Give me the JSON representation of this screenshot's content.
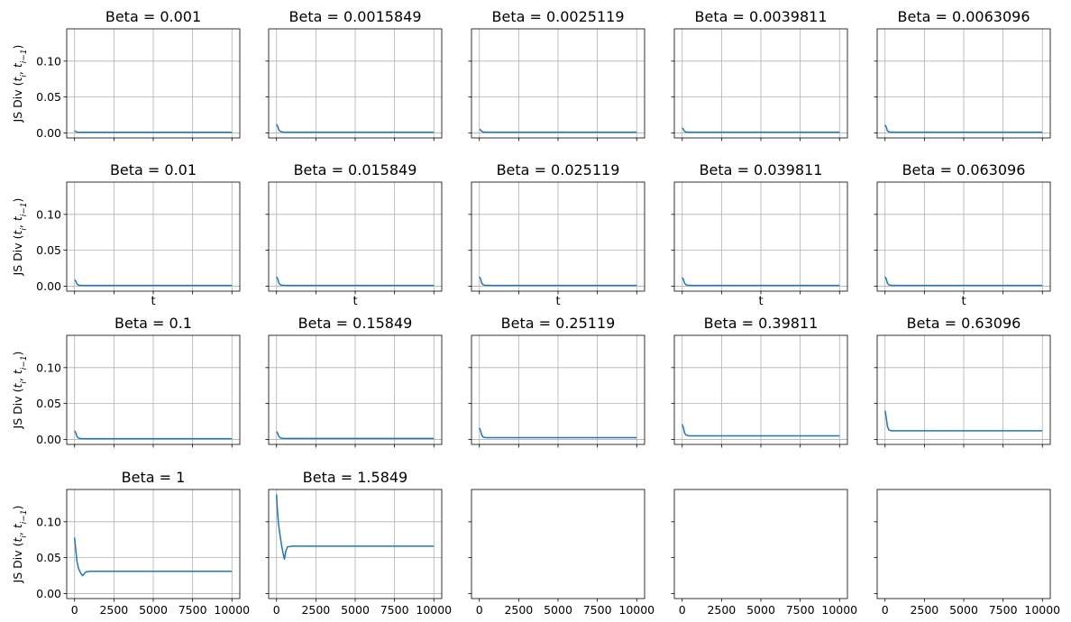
{
  "chart_data": {
    "type": "line",
    "layout": "4x5 grid of subplots, shared x and y axes",
    "grid": true,
    "colors": {
      "line": "#1f77b4",
      "grid": "#b0b0b0",
      "axes": "#000000"
    },
    "xlim": [
      -500,
      10500
    ],
    "ylim": [
      -0.007,
      0.145
    ],
    "x_ticks": [
      0,
      2500,
      5000,
      7500,
      10000
    ],
    "x_tick_labels": [
      "0",
      "2500",
      "5000",
      "7500",
      "10000"
    ],
    "y_ticks": [
      0.0,
      0.05,
      0.1
    ],
    "y_tick_labels": [
      "0.00",
      "0.05",
      "0.10"
    ],
    "ylabel": "JS Div (t_i, t_{i-1})",
    "ylabel_parts": {
      "prefix": "JS Div (",
      "t": "t",
      "sub_i": "i",
      "comma": ", ",
      "sub_prev": "i−1",
      "suffix": ")"
    },
    "xlabel": "t",
    "subplots": [
      {
        "title": "Beta = 0.001",
        "series": {
          "x": [
            0,
            150,
            300,
            600,
            1000,
            2000,
            3000,
            4000,
            5000,
            6000,
            7000,
            8000,
            9000,
            10000
          ],
          "y": [
            0.003,
            0.001,
            0.0008,
            0.0008,
            0.0008,
            0.0008,
            0.0008,
            0.0008,
            0.0008,
            0.0008,
            0.0008,
            0.0008,
            0.0008,
            0.0008
          ]
        }
      },
      {
        "title": "Beta = 0.0015849",
        "series": {
          "x": [
            0,
            80,
            150,
            250,
            400,
            700,
            1000,
            2000,
            3000,
            4000,
            5000,
            6000,
            7000,
            8000,
            9000,
            10000
          ],
          "y": [
            0.012,
            0.009,
            0.004,
            0.002,
            0.0012,
            0.001,
            0.001,
            0.001,
            0.001,
            0.001,
            0.001,
            0.001,
            0.001,
            0.001,
            0.001,
            0.001
          ]
        }
      },
      {
        "title": "Beta = 0.0025119",
        "series": {
          "x": [
            0,
            80,
            150,
            250,
            400,
            700,
            1000,
            2000,
            3000,
            4000,
            5000,
            6000,
            7000,
            8000,
            9000,
            10000
          ],
          "y": [
            0.005,
            0.004,
            0.002,
            0.0013,
            0.001,
            0.001,
            0.001,
            0.001,
            0.001,
            0.001,
            0.001,
            0.001,
            0.001,
            0.001,
            0.001,
            0.001
          ]
        }
      },
      {
        "title": "Beta = 0.0039811",
        "series": {
          "x": [
            0,
            80,
            150,
            250,
            400,
            700,
            1000,
            2000,
            3000,
            4000,
            5000,
            6000,
            7000,
            8000,
            9000,
            10000
          ],
          "y": [
            0.007,
            0.005,
            0.002,
            0.0013,
            0.001,
            0.001,
            0.001,
            0.001,
            0.001,
            0.001,
            0.001,
            0.001,
            0.001,
            0.001,
            0.001,
            0.001
          ]
        }
      },
      {
        "title": "Beta = 0.0063096",
        "series": {
          "x": [
            0,
            80,
            150,
            250,
            400,
            700,
            1000,
            2000,
            3000,
            4000,
            5000,
            6000,
            7000,
            8000,
            9000,
            10000
          ],
          "y": [
            0.011,
            0.008,
            0.003,
            0.0015,
            0.001,
            0.001,
            0.001,
            0.001,
            0.001,
            0.001,
            0.001,
            0.001,
            0.001,
            0.001,
            0.001,
            0.001
          ]
        }
      },
      {
        "title": "Beta = 0.01",
        "series": {
          "x": [
            0,
            80,
            150,
            250,
            400,
            700,
            1000,
            2000,
            3000,
            4000,
            5000,
            6000,
            7000,
            8000,
            9000,
            10000
          ],
          "y": [
            0.009,
            0.007,
            0.003,
            0.0015,
            0.001,
            0.001,
            0.001,
            0.001,
            0.001,
            0.001,
            0.001,
            0.001,
            0.001,
            0.001,
            0.001,
            0.001
          ]
        }
      },
      {
        "title": "Beta = 0.015849",
        "series": {
          "x": [
            0,
            80,
            150,
            250,
            400,
            700,
            1000,
            2000,
            3000,
            4000,
            5000,
            6000,
            7000,
            8000,
            9000,
            10000
          ],
          "y": [
            0.013,
            0.01,
            0.004,
            0.0018,
            0.0011,
            0.001,
            0.001,
            0.001,
            0.001,
            0.001,
            0.001,
            0.001,
            0.001,
            0.001,
            0.001,
            0.001
          ]
        }
      },
      {
        "title": "Beta = 0.025119",
        "series": {
          "x": [
            0,
            80,
            150,
            250,
            400,
            700,
            1000,
            2000,
            3000,
            4000,
            5000,
            6000,
            7000,
            8000,
            9000,
            10000
          ],
          "y": [
            0.013,
            0.01,
            0.004,
            0.0018,
            0.0011,
            0.001,
            0.001,
            0.001,
            0.001,
            0.001,
            0.001,
            0.001,
            0.001,
            0.001,
            0.001,
            0.001
          ]
        }
      },
      {
        "title": "Beta = 0.039811",
        "series": {
          "x": [
            0,
            80,
            150,
            250,
            400,
            700,
            1000,
            2000,
            3000,
            4000,
            5000,
            6000,
            7000,
            8000,
            9000,
            10000
          ],
          "y": [
            0.012,
            0.009,
            0.004,
            0.0018,
            0.0011,
            0.001,
            0.001,
            0.001,
            0.001,
            0.001,
            0.001,
            0.001,
            0.001,
            0.001,
            0.001,
            0.001
          ]
        }
      },
      {
        "title": "Beta = 0.063096",
        "series": {
          "x": [
            0,
            80,
            150,
            250,
            400,
            700,
            1000,
            2000,
            3000,
            4000,
            5000,
            6000,
            7000,
            8000,
            9000,
            10000
          ],
          "y": [
            0.013,
            0.01,
            0.004,
            0.0018,
            0.0011,
            0.001,
            0.001,
            0.001,
            0.001,
            0.001,
            0.001,
            0.001,
            0.001,
            0.001,
            0.001,
            0.001
          ]
        }
      },
      {
        "title": "Beta = 0.1",
        "series": {
          "x": [
            0,
            80,
            150,
            250,
            400,
            700,
            1000,
            2000,
            3000,
            4000,
            5000,
            6000,
            7000,
            8000,
            9000,
            10000
          ],
          "y": [
            0.012,
            0.009,
            0.004,
            0.0018,
            0.0012,
            0.001,
            0.001,
            0.001,
            0.001,
            0.001,
            0.001,
            0.001,
            0.001,
            0.001,
            0.001,
            0.001
          ]
        }
      },
      {
        "title": "Beta = 0.15849",
        "series": {
          "x": [
            0,
            80,
            150,
            250,
            400,
            700,
            1000,
            2000,
            3000,
            4000,
            5000,
            6000,
            7000,
            8000,
            9000,
            10000
          ],
          "y": [
            0.011,
            0.008,
            0.004,
            0.002,
            0.0015,
            0.0013,
            0.0013,
            0.0013,
            0.0013,
            0.0013,
            0.0013,
            0.0013,
            0.0013,
            0.0013,
            0.0013,
            0.0013
          ]
        }
      },
      {
        "title": "Beta = 0.25119",
        "series": {
          "x": [
            0,
            80,
            150,
            250,
            400,
            700,
            1000,
            2000,
            3000,
            4000,
            5000,
            6000,
            7000,
            8000,
            9000,
            10000
          ],
          "y": [
            0.016,
            0.012,
            0.006,
            0.003,
            0.0025,
            0.0025,
            0.0025,
            0.0025,
            0.0025,
            0.0025,
            0.0025,
            0.0025,
            0.0025,
            0.0025,
            0.0025,
            0.0025
          ]
        }
      },
      {
        "title": "Beta = 0.39811",
        "series": {
          "x": [
            0,
            80,
            150,
            250,
            400,
            700,
            1000,
            2000,
            3000,
            4000,
            5000,
            6000,
            7000,
            8000,
            9000,
            10000
          ],
          "y": [
            0.021,
            0.016,
            0.009,
            0.006,
            0.005,
            0.005,
            0.005,
            0.005,
            0.005,
            0.005,
            0.005,
            0.005,
            0.005,
            0.005,
            0.005,
            0.005
          ]
        }
      },
      {
        "title": "Beta = 0.63096",
        "series": {
          "x": [
            0,
            80,
            150,
            250,
            400,
            700,
            1000,
            2000,
            3000,
            4000,
            5000,
            6000,
            7000,
            8000,
            9000,
            10000
          ],
          "y": [
            0.04,
            0.03,
            0.018,
            0.013,
            0.012,
            0.012,
            0.012,
            0.012,
            0.012,
            0.012,
            0.012,
            0.012,
            0.012,
            0.012,
            0.012,
            0.012
          ]
        }
      },
      {
        "title": "Beta = 1",
        "series": {
          "x": [
            0,
            80,
            150,
            250,
            400,
            500,
            600,
            700,
            1000,
            2000,
            3000,
            4000,
            5000,
            6000,
            7000,
            8000,
            9000,
            10000
          ],
          "y": [
            0.078,
            0.06,
            0.045,
            0.035,
            0.028,
            0.025,
            0.027,
            0.03,
            0.031,
            0.031,
            0.031,
            0.031,
            0.031,
            0.031,
            0.031,
            0.031,
            0.031,
            0.031
          ]
        }
      },
      {
        "title": "Beta = 1.5849",
        "series": {
          "x": [
            0,
            60,
            120,
            200,
            300,
            400,
            500,
            600,
            700,
            1000,
            2000,
            3000,
            4000,
            5000,
            6000,
            7000,
            8000,
            9000,
            10000
          ],
          "y": [
            0.138,
            0.115,
            0.098,
            0.085,
            0.07,
            0.058,
            0.048,
            0.06,
            0.065,
            0.066,
            0.066,
            0.066,
            0.066,
            0.066,
            0.066,
            0.066,
            0.066,
            0.066,
            0.066
          ]
        }
      },
      {
        "title": "",
        "series": null
      },
      {
        "title": "",
        "series": null
      },
      {
        "title": "",
        "series": null
      }
    ]
  }
}
